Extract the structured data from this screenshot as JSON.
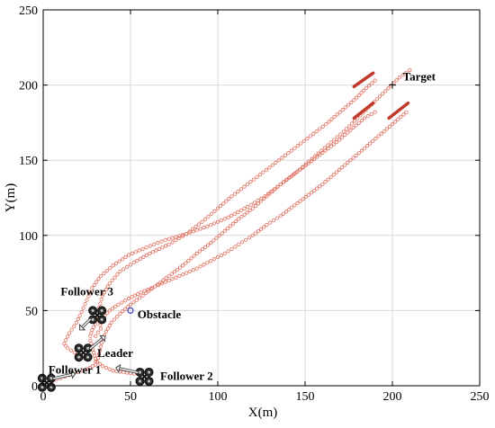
{
  "chart_data": {
    "type": "scatter",
    "xlabel": "X(m)",
    "ylabel": "Y(m)",
    "xlim": [
      0,
      250
    ],
    "ylim": [
      0,
      250
    ],
    "xticks": [
      0,
      50,
      100,
      150,
      200,
      250
    ],
    "yticks": [
      0,
      50,
      100,
      150,
      200,
      250
    ],
    "grid": true,
    "colors": {
      "trajectory": "#e07060",
      "drone_tail": "#c0392b",
      "obstacle": "#2020c0",
      "target": "#000000",
      "drone": "#222222"
    },
    "series": [
      {
        "values": [
          [
            0,
            0
          ],
          [
            5,
            3
          ],
          [
            10,
            5
          ],
          [
            15,
            7
          ],
          [
            20,
            9
          ],
          [
            25,
            11
          ],
          [
            30,
            14
          ],
          [
            30,
            18
          ],
          [
            29,
            22
          ],
          [
            28,
            26
          ],
          [
            27,
            30
          ],
          [
            27,
            33
          ],
          [
            28,
            37
          ],
          [
            30,
            41
          ],
          [
            34,
            45
          ],
          [
            38,
            50
          ],
          [
            43,
            54
          ],
          [
            49,
            58
          ],
          [
            56,
            62
          ],
          [
            64,
            66
          ],
          [
            72,
            70
          ],
          [
            80,
            74
          ],
          [
            88,
            78
          ],
          [
            96,
            83
          ],
          [
            104,
            88
          ],
          [
            112,
            94
          ],
          [
            120,
            100
          ],
          [
            128,
            107
          ],
          [
            136,
            113
          ],
          [
            144,
            120
          ],
          [
            152,
            127
          ],
          [
            160,
            134
          ],
          [
            168,
            142
          ],
          [
            176,
            150
          ],
          [
            184,
            158
          ],
          [
            192,
            166
          ],
          [
            200,
            174
          ],
          [
            208,
            182
          ]
        ]
      },
      {
        "values": [
          [
            58,
            8
          ],
          [
            52,
            8
          ],
          [
            46,
            9
          ],
          [
            40,
            10
          ],
          [
            34,
            13
          ],
          [
            31,
            16
          ],
          [
            32,
            21
          ],
          [
            33,
            26
          ],
          [
            34,
            31
          ],
          [
            36,
            36
          ],
          [
            39,
            42
          ],
          [
            44,
            48
          ],
          [
            50,
            54
          ],
          [
            57,
            60
          ],
          [
            64,
            66
          ],
          [
            72,
            73
          ],
          [
            80,
            80
          ],
          [
            88,
            88
          ],
          [
            96,
            95
          ],
          [
            104,
            103
          ],
          [
            112,
            111
          ],
          [
            120,
            118
          ],
          [
            128,
            126
          ],
          [
            136,
            134
          ],
          [
            144,
            141
          ],
          [
            152,
            148
          ],
          [
            160,
            155
          ],
          [
            168,
            162
          ],
          [
            176,
            170
          ],
          [
            184,
            178
          ],
          [
            190,
            182
          ]
        ]
      },
      {
        "values": [
          [
            24,
            18
          ],
          [
            18,
            22
          ],
          [
            14,
            25
          ],
          [
            12,
            28
          ],
          [
            15,
            35
          ],
          [
            19,
            42
          ],
          [
            22,
            49
          ],
          [
            25,
            57
          ],
          [
            28,
            65
          ],
          [
            33,
            73
          ],
          [
            40,
            80
          ],
          [
            49,
            87
          ],
          [
            59,
            92
          ],
          [
            70,
            97
          ],
          [
            82,
            101
          ],
          [
            94,
            106
          ],
          [
            106,
            112
          ],
          [
            117,
            119
          ],
          [
            127,
            126
          ],
          [
            136,
            134
          ],
          [
            145,
            142
          ],
          [
            154,
            151
          ],
          [
            163,
            160
          ],
          [
            172,
            169
          ],
          [
            180,
            178
          ],
          [
            188,
            187
          ],
          [
            196,
            196
          ],
          [
            204,
            205
          ],
          [
            210,
            210
          ]
        ]
      },
      {
        "values": [
          [
            30,
            33
          ],
          [
            33,
            38
          ],
          [
            32,
            45
          ],
          [
            32,
            52
          ],
          [
            34,
            60
          ],
          [
            38,
            68
          ],
          [
            44,
            76
          ],
          [
            52,
            82
          ],
          [
            61,
            88
          ],
          [
            72,
            94
          ],
          [
            82,
            101
          ],
          [
            91,
            109
          ],
          [
            100,
            118
          ],
          [
            108,
            126
          ],
          [
            117,
            134
          ],
          [
            126,
            142
          ],
          [
            135,
            150
          ],
          [
            144,
            158
          ],
          [
            153,
            166
          ],
          [
            162,
            174
          ],
          [
            170,
            182
          ],
          [
            178,
            190
          ],
          [
            185,
            198
          ],
          [
            190,
            203
          ]
        ]
      }
    ],
    "drones": [
      {
        "name": "Follower 1",
        "x": 2,
        "y": 2,
        "arrow_dx": 18,
        "arrow_dy": 4
      },
      {
        "name": "Follower 2",
        "x": 58,
        "y": 6,
        "arrow_dx": -18,
        "arrow_dy": 4
      },
      {
        "name": "Leader",
        "x": 23,
        "y": 22,
        "arrow_dx": 12,
        "arrow_dy": 10
      },
      {
        "name": "Follower 3",
        "x": 31,
        "y": 47,
        "arrow_dx": -8,
        "arrow_dy": -8
      }
    ],
    "drone_tails": [
      {
        "x1": 178,
        "y1": 199,
        "x2": 189,
        "y2": 208
      },
      {
        "x1": 178,
        "y1": 178,
        "x2": 189,
        "y2": 188
      },
      {
        "x1": 198,
        "y1": 178,
        "x2": 209,
        "y2": 188
      }
    ],
    "obstacle": {
      "x": 50,
      "y": 50
    },
    "target": {
      "x": 200,
      "y": 200
    },
    "annotations": [
      {
        "text": "Target",
        "x": 206,
        "y": 203
      },
      {
        "text": "Obstacle",
        "x": 54,
        "y": 45
      },
      {
        "text": "Leader",
        "x": 31,
        "y": 19
      },
      {
        "text": "Follower 1",
        "x": 3,
        "y": 8
      },
      {
        "text": "Follower 2",
        "x": 67,
        "y": 4
      },
      {
        "text": "Follower 3",
        "x": 10,
        "y": 60
      }
    ]
  }
}
